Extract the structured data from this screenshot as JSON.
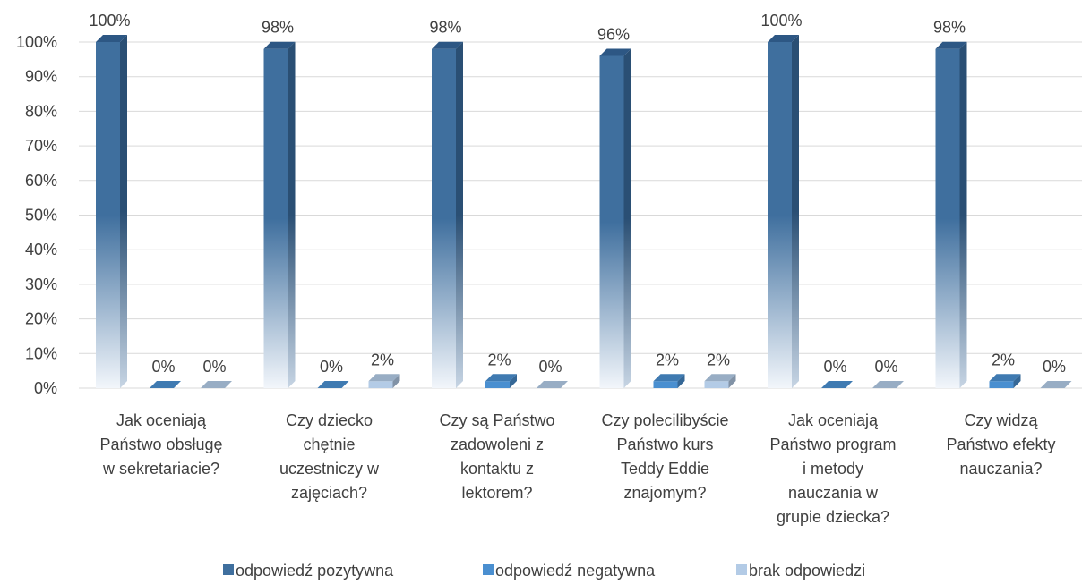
{
  "chart_data": {
    "type": "bar",
    "categories": [
      [
        "Jak oceniają",
        "Państwo obsługę",
        "w sekretariacie?"
      ],
      [
        "Czy dziecko",
        "chętnie",
        "uczestniczy w",
        "zajęciach?"
      ],
      [
        "Czy są Państwo",
        "zadowoleni z",
        "kontaktu z",
        "lektorem?"
      ],
      [
        "Czy polecilibyście",
        "Państwo kurs",
        "Teddy Eddie",
        "znajomym?"
      ],
      [
        "Jak oceniają",
        "Państwo program",
        "i metody",
        "nauczania w",
        "grupie dziecka?"
      ],
      [
        "Czy widzą",
        "Państwo efekty",
        "nauczania?"
      ]
    ],
    "series": [
      {
        "name": "odpowiedź pozytywna",
        "values": [
          100,
          98,
          98,
          96,
          100,
          98
        ],
        "labels": [
          "100%",
          "98%",
          "98%",
          "96%",
          "100%",
          "98%"
        ],
        "color": "#3f6f9e"
      },
      {
        "name": "odpowiedź negatywna",
        "values": [
          0,
          0,
          2,
          2,
          0,
          2
        ],
        "labels": [
          "0%",
          "0%",
          "2%",
          "2%",
          "0%",
          "2%"
        ],
        "color": "#4a8fd0"
      },
      {
        "name": "brak odpowiedzi",
        "values": [
          0,
          2,
          0,
          2,
          0,
          0
        ],
        "labels": [
          "0%",
          "2%",
          "0%",
          "2%",
          "0%",
          "0%"
        ],
        "color": "#b3cbe6"
      }
    ],
    "y_ticks": [
      "0%",
      "10%",
      "20%",
      "30%",
      "40%",
      "50%",
      "60%",
      "70%",
      "80%",
      "90%",
      "100%"
    ],
    "ylim": [
      0,
      100
    ],
    "grid": true,
    "legend_position": "bottom"
  }
}
